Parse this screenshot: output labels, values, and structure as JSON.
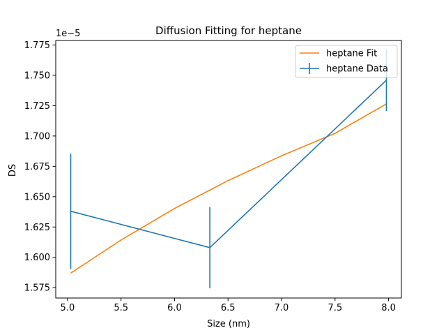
{
  "chart_data": {
    "type": "line",
    "title": "Diffusion Fitting for heptane",
    "xlabel": "Size (nm)",
    "ylabel": "DS",
    "y_offset_label": "1e−5",
    "xlim": [
      4.89,
      8.12
    ],
    "ylim": [
      1.5665,
      1.7787
    ],
    "x_ticks": [
      5.0,
      5.5,
      6.0,
      6.5,
      7.0,
      7.5,
      8.0
    ],
    "x_tick_labels": [
      "5.0",
      "5.5",
      "6.0",
      "6.5",
      "7.0",
      "7.5",
      "8.0"
    ],
    "y_ticks": [
      1.575,
      1.6,
      1.625,
      1.65,
      1.675,
      1.7,
      1.725,
      1.75,
      1.775
    ],
    "y_tick_labels": [
      "1.575",
      "1.600",
      "1.625",
      "1.650",
      "1.675",
      "1.700",
      "1.725",
      "1.750",
      "1.775"
    ],
    "grid": false,
    "legend_position": "top-right",
    "series": [
      {
        "name": "heptane Fit",
        "kind": "line",
        "color": "#ff7f0e",
        "x": [
          5.03,
          5.5,
          6.0,
          6.5,
          7.0,
          7.5,
          7.98
        ],
        "y": [
          1.587,
          1.6143,
          1.6403,
          1.6632,
          1.6837,
          1.7022,
          1.7265
        ]
      },
      {
        "name": "heptane Data",
        "kind": "errorbar",
        "color": "#1f77b4",
        "x": [
          5.03,
          6.33,
          7.98
        ],
        "y": [
          1.638,
          1.608,
          1.746
        ],
        "yerr": [
          0.0475,
          0.0335,
          0.0255
        ]
      }
    ]
  }
}
